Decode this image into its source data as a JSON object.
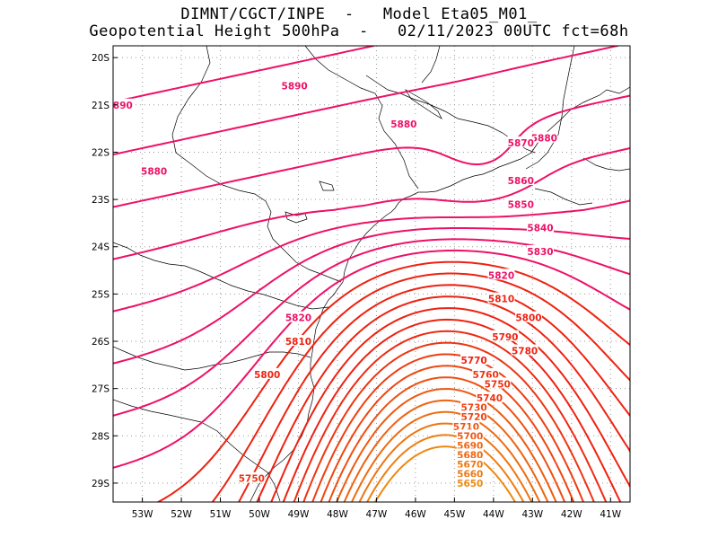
{
  "header": {
    "line1": "DIMNT/CGCT/INPE  -   Model Eta05_M01_",
    "line2": "Geopotential Height 500hPa  -   02/11/2023 00UTC fct=68h"
  },
  "axes": {
    "lat_labels": [
      "20S",
      "21S",
      "22S",
      "23S",
      "24S",
      "25S",
      "26S",
      "27S",
      "28S",
      "29S"
    ],
    "lon_labels": [
      "53W",
      "52W",
      "51W",
      "50W",
      "49W",
      "48W",
      "47W",
      "46W",
      "45W",
      "44W",
      "43W",
      "42W",
      "41W"
    ]
  },
  "contours": {
    "levels": [
      5650,
      5660,
      5670,
      5680,
      5690,
      5700,
      5710,
      5720,
      5730,
      5740,
      5750,
      5760,
      5770,
      5780,
      5790,
      5800,
      5810,
      5820,
      5830,
      5840,
      5850,
      5860,
      5870,
      5880,
      5890
    ],
    "labels": [
      {
        "text": "5890",
        "lon": -49.1,
        "lat": -20.6,
        "color": "#ee1166"
      },
      {
        "text": "890",
        "lon": -53.5,
        "lat": -21.0,
        "color": "#ee1166"
      },
      {
        "text": "5880",
        "lon": -46.3,
        "lat": -21.4,
        "color": "#ee1166"
      },
      {
        "text": "5880",
        "lon": -52.7,
        "lat": -22.4,
        "color": "#ee1166"
      },
      {
        "text": "5880",
        "lon": -42.7,
        "lat": -21.7,
        "color": "#ee1166"
      },
      {
        "text": "5870",
        "lon": -43.3,
        "lat": -21.8,
        "color": "#ee1166"
      },
      {
        "text": "5860",
        "lon": -43.3,
        "lat": -22.6,
        "color": "#ee1166"
      },
      {
        "text": "5850",
        "lon": -43.3,
        "lat": -23.1,
        "color": "#ee1166"
      },
      {
        "text": "5840",
        "lon": -42.8,
        "lat": -23.6,
        "color": "#ee1166"
      },
      {
        "text": "5830",
        "lon": -42.8,
        "lat": -24.1,
        "color": "#ee1166"
      },
      {
        "text": "5820",
        "lon": -43.8,
        "lat": -24.6,
        "color": "#ee1166"
      },
      {
        "text": "5820",
        "lon": -49.0,
        "lat": -25.5,
        "color": "#ee1166"
      },
      {
        "text": "5810",
        "lon": -43.8,
        "lat": -25.1,
        "color": "#ee2211"
      },
      {
        "text": "5810",
        "lon": -49.0,
        "lat": -26.0,
        "color": "#ee2211"
      },
      {
        "text": "5800",
        "lon": -43.1,
        "lat": -25.5,
        "color": "#ee2211"
      },
      {
        "text": "5800",
        "lon": -49.8,
        "lat": -26.7,
        "color": "#ee2211"
      },
      {
        "text": "5790",
        "lon": -43.7,
        "lat": -25.9,
        "color": "#ee2211"
      },
      {
        "text": "5780",
        "lon": -43.2,
        "lat": -26.2,
        "color": "#ee2211"
      },
      {
        "text": "5770",
        "lon": -44.5,
        "lat": -26.4,
        "color": "#ee2211"
      },
      {
        "text": "5760",
        "lon": -44.2,
        "lat": -26.7,
        "color": "#ee3311"
      },
      {
        "text": "5750",
        "lon": -43.9,
        "lat": -26.9,
        "color": "#ee3311"
      },
      {
        "text": "5740",
        "lon": -44.1,
        "lat": -27.2,
        "color": "#ee3311"
      },
      {
        "text": "5730",
        "lon": -44.5,
        "lat": -27.4,
        "color": "#ee4411"
      },
      {
        "text": "5720",
        "lon": -44.5,
        "lat": -27.6,
        "color": "#ee4411"
      },
      {
        "text": "5750",
        "lon": -50.2,
        "lat": -28.9,
        "color": "#ee3311"
      },
      {
        "text": "5710",
        "lon": -44.7,
        "lat": -27.8,
        "color": "#ee5511"
      },
      {
        "text": "5700",
        "lon": -44.6,
        "lat": -28.0,
        "color": "#ee5511"
      },
      {
        "text": "5690",
        "lon": -44.6,
        "lat": -28.2,
        "color": "#ee6611"
      },
      {
        "text": "5680",
        "lon": -44.6,
        "lat": -28.4,
        "color": "#ee6611"
      },
      {
        "text": "5670",
        "lon": -44.6,
        "lat": -28.6,
        "color": "#ee7711"
      },
      {
        "text": "5660",
        "lon": -44.6,
        "lat": -28.8,
        "color": "#ee7711"
      },
      {
        "text": "5650",
        "lon": -44.6,
        "lat": -29.0,
        "color": "#ee8811"
      }
    ]
  },
  "colors": {
    "high": "#ee1166",
    "mid": "#ee2211",
    "low": "#ee8811",
    "grid": "#999999",
    "coast": "#000000"
  }
}
